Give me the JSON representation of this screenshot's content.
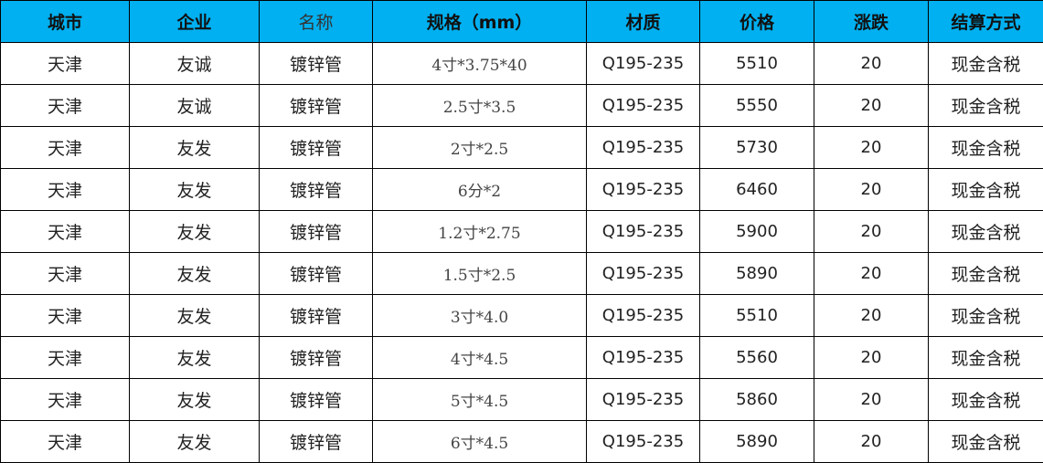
{
  "table": {
    "header_color": "#00B0F0",
    "headers": [
      "城市",
      "企业",
      "名称",
      "规格（mm）",
      "材质",
      "价格",
      "涨跌",
      "结算方式"
    ],
    "rows": [
      [
        "天津",
        "友诚",
        "镀锌管",
        "4寸*3.75*40",
        "Q195-235",
        "5510",
        "20",
        "现金含税"
      ],
      [
        "天津",
        "友诚",
        "镀锌管",
        "2.5寸*3.5",
        "Q195-235",
        "5550",
        "20",
        "现金含税"
      ],
      [
        "天津",
        "友发",
        "镀锌管",
        "2寸*2.5",
        "Q195-235",
        "5730",
        "20",
        "现金含税"
      ],
      [
        "天津",
        "友发",
        "镀锌管",
        "6分*2",
        "Q195-235",
        "6460",
        "20",
        "现金含税"
      ],
      [
        "天津",
        "友发",
        "镀锌管",
        "1.2寸*2.75",
        "Q195-235",
        "5900",
        "20",
        "现金含税"
      ],
      [
        "天津",
        "友发",
        "镀锌管",
        "1.5寸*2.5",
        "Q195-235",
        "5890",
        "20",
        "现金含税"
      ],
      [
        "天津",
        "友发",
        "镀锌管",
        "3寸*4.0",
        "Q195-235",
        "5510",
        "20",
        "现金含税"
      ],
      [
        "天津",
        "友发",
        "镀锌管",
        "4寸*4.5",
        "Q195-235",
        "5560",
        "20",
        "现金含税"
      ],
      [
        "天津",
        "友发",
        "镀锌管",
        "5寸*4.5",
        "Q195-235",
        "5860",
        "20",
        "现金含税"
      ],
      [
        "天津",
        "友发",
        "镀锌管",
        "6寸*4.5",
        "Q195-235",
        "5890",
        "20",
        "现金含税"
      ]
    ]
  }
}
